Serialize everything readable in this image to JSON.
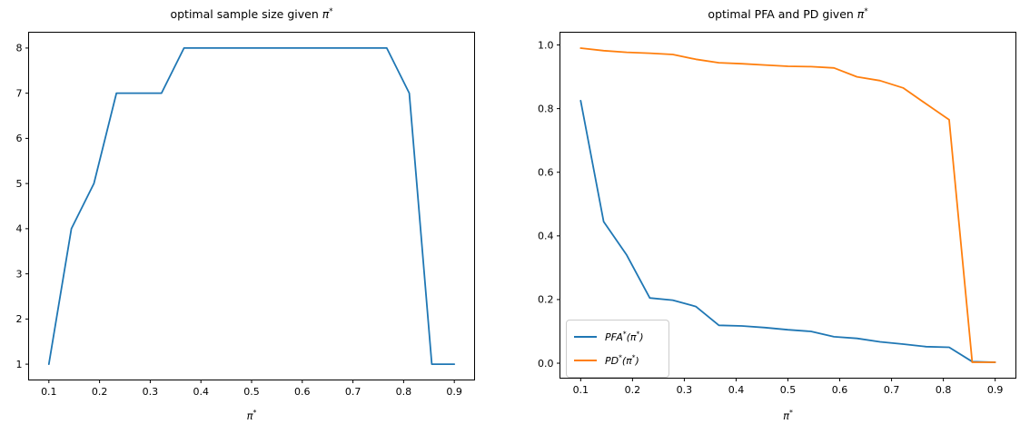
{
  "figure": {
    "background_color": "#ffffff",
    "text_color": "#000000",
    "spine_color": "#000000"
  },
  "chart_data": [
    {
      "type": "line",
      "title": "optimal sample size given π*",
      "xlabel": "π*",
      "grid": false,
      "legend": null,
      "xlim": [
        0.06,
        0.94
      ],
      "ylim": [
        0.65,
        8.35
      ],
      "xtick_labels": [
        "0.1",
        "0.2",
        "0.3",
        "0.4",
        "0.5",
        "0.6",
        "0.7",
        "0.8",
        "0.9"
      ],
      "ytick_labels": [
        "1",
        "2",
        "3",
        "4",
        "5",
        "6",
        "7",
        "8"
      ],
      "x": [
        0.1,
        0.1444,
        0.1889,
        0.2333,
        0.2778,
        0.3222,
        0.3667,
        0.4111,
        0.4556,
        0.5,
        0.5444,
        0.5889,
        0.6333,
        0.6778,
        0.7222,
        0.7667,
        0.8111,
        0.8556,
        0.9
      ],
      "series": [
        {
          "name": "",
          "color": "#1f77b4",
          "values": [
            1,
            4,
            5,
            7,
            7,
            7,
            8,
            8,
            8,
            8,
            8,
            8,
            8,
            8,
            8,
            8,
            7,
            1,
            1
          ]
        }
      ]
    },
    {
      "type": "line",
      "title": "optimal PFA and PD given π*",
      "xlabel": "π*",
      "grid": false,
      "legend": {
        "position": "lower left"
      },
      "xlim": [
        0.06,
        0.94
      ],
      "ylim": [
        -0.047,
        1.04
      ],
      "xtick_labels": [
        "0.1",
        "0.2",
        "0.3",
        "0.4",
        "0.5",
        "0.6",
        "0.7",
        "0.8",
        "0.9"
      ],
      "ytick_labels": [
        "0.0",
        "0.2",
        "0.4",
        "0.6",
        "0.8",
        "1.0"
      ],
      "x": [
        0.1,
        0.1444,
        0.1889,
        0.2333,
        0.2778,
        0.3222,
        0.3667,
        0.4111,
        0.4556,
        0.5,
        0.5444,
        0.5889,
        0.6333,
        0.6778,
        0.7222,
        0.7667,
        0.8111,
        0.8556,
        0.9
      ],
      "series": [
        {
          "name": "PFA*(π*)",
          "color": "#1f77b4",
          "values": [
            0.825,
            0.445,
            0.34,
            0.205,
            0.198,
            0.178,
            0.119,
            0.117,
            0.112,
            0.105,
            0.1,
            0.083,
            0.078,
            0.067,
            0.06,
            0.052,
            0.05,
            0.005,
            0.003
          ]
        },
        {
          "name": "PD*(π*)",
          "color": "#ff7f0e",
          "values": [
            0.99,
            0.982,
            0.977,
            0.974,
            0.97,
            0.955,
            0.944,
            0.941,
            0.937,
            0.933,
            0.932,
            0.928,
            0.9,
            0.888,
            0.865,
            0.815,
            0.765,
            0.003,
            0.003
          ]
        }
      ]
    }
  ]
}
